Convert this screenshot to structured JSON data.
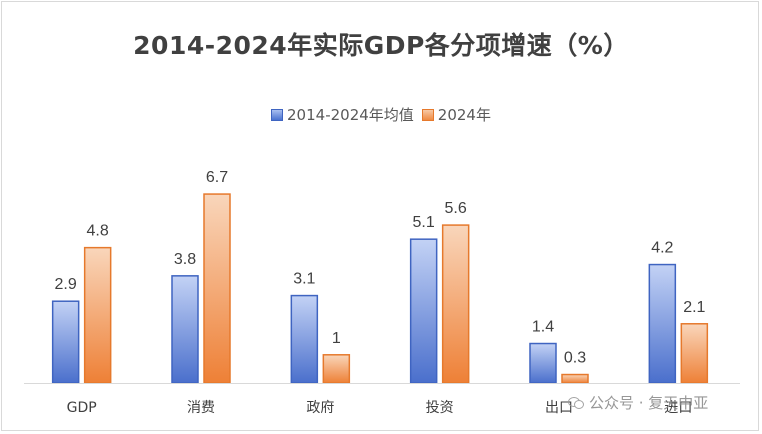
{
  "chart_data": {
    "type": "bar",
    "title": "2014-2024年实际GDP各分项增速（%）",
    "categories": [
      "GDP",
      "消费",
      "政府",
      "投资",
      "出口",
      "进口"
    ],
    "series": [
      {
        "name": "2014-2024年均值",
        "values": [
          2.9,
          3.8,
          3.1,
          5.1,
          1.4,
          4.2
        ],
        "color": "#4472c4",
        "color_light": "#b4c7f2"
      },
      {
        "name": "2024年",
        "values": [
          4.8,
          6.7,
          1,
          5.6,
          0.3,
          2.1
        ],
        "color": "#ed7d31",
        "color_light": "#f8cfae"
      }
    ],
    "value_labels": [
      [
        "2.9",
        "3.8",
        "3.1",
        "5.1",
        "1.4",
        "4.2"
      ],
      [
        "4.8",
        "6.7",
        "1",
        "5.6",
        "0.3",
        "2.1"
      ]
    ],
    "ylim": [
      0,
      8.5
    ],
    "xlabel": "",
    "ylabel": "",
    "grid": false,
    "legend_position": "top"
  },
  "watermark": {
    "text": "公众号 · 复天中亚",
    "icon": "wechat-icon"
  }
}
